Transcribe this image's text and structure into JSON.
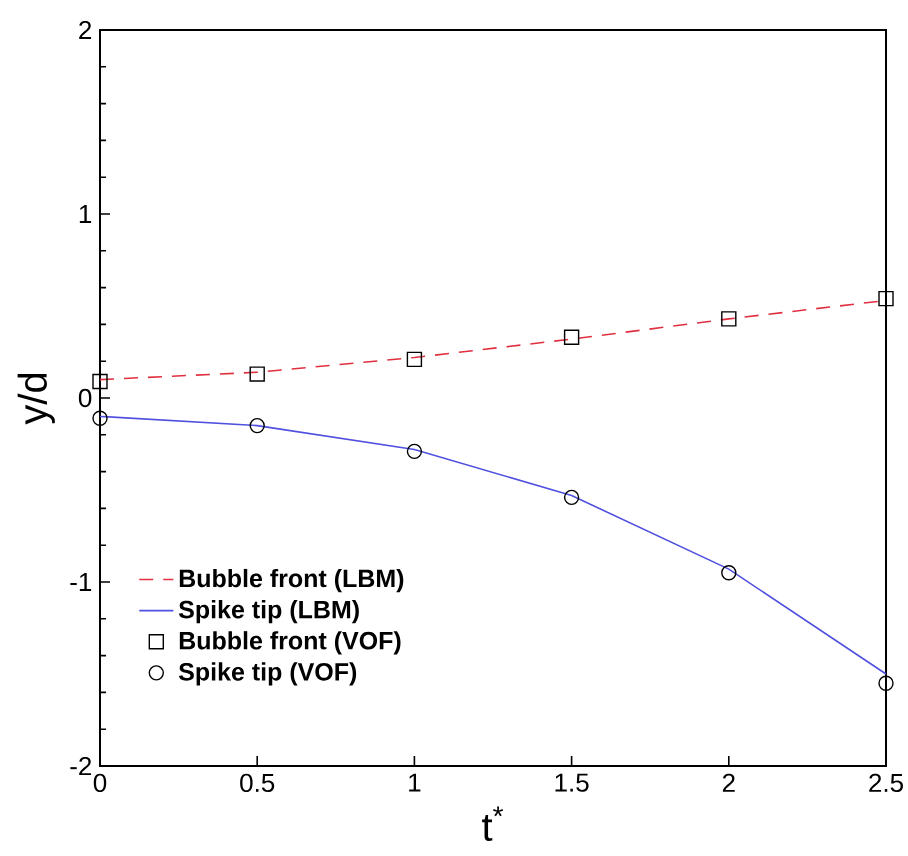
{
  "chart_data": {
    "type": "line",
    "xlabel": "t$^{*}$",
    "ylabel": "y/d",
    "xlim": [
      0,
      2.5
    ],
    "ylim": [
      -2,
      2
    ],
    "xticks": [
      0,
      0.5,
      1,
      1.5,
      2,
      2.5
    ],
    "yticks": [
      -2,
      -1,
      0,
      1,
      2
    ],
    "x": [
      0,
      0.5,
      1,
      1.5,
      2,
      2.5
    ],
    "legend": "bottom left",
    "grid": false,
    "series": [
      {
        "name": "Bubble front (LBM)",
        "type": "line",
        "line_style": "dashed",
        "color": "#e03040",
        "values": [
          0.1,
          0.14,
          0.22,
          0.32,
          0.43,
          0.53
        ]
      },
      {
        "name": "Spike tip (LBM)",
        "type": "line",
        "line_style": "solid",
        "color": "#5050e0",
        "values": [
          -0.1,
          -0.15,
          -0.28,
          -0.53,
          -0.93,
          -1.5
        ]
      },
      {
        "name": "Bubble front (VOF)",
        "type": "scatter",
        "marker": "square",
        "color": "#000000",
        "values": [
          0.09,
          0.13,
          0.21,
          0.33,
          0.43,
          0.54
        ]
      },
      {
        "name": "Spike tip (VOF)",
        "type": "scatter",
        "marker": "circle",
        "color": "#000000",
        "values": [
          -0.11,
          -0.15,
          -0.29,
          -0.54,
          -0.95,
          -1.55
        ]
      }
    ]
  }
}
